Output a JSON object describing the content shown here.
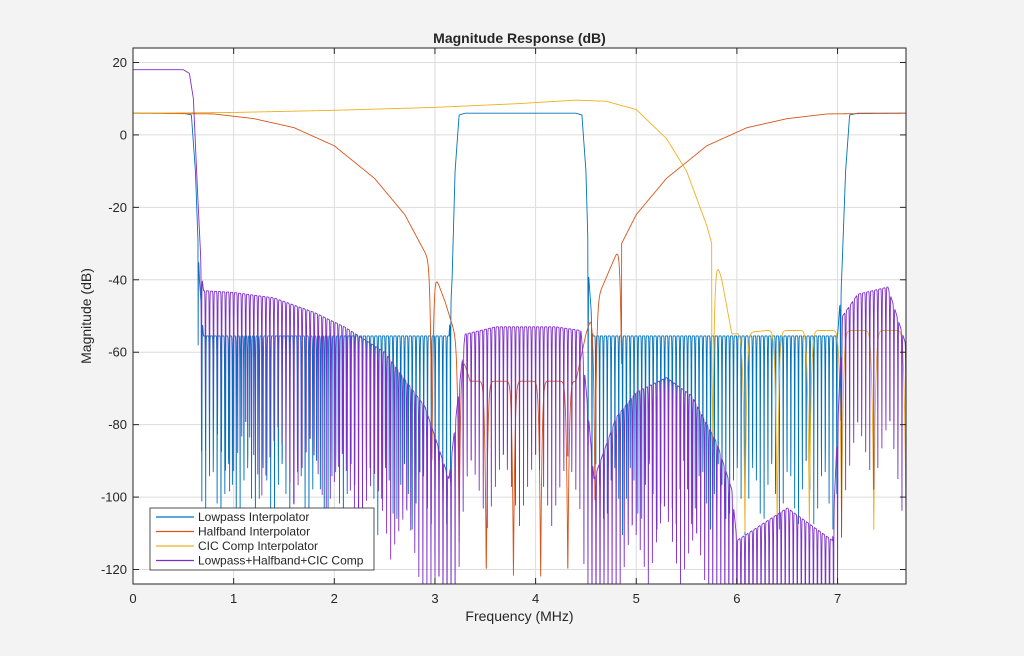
{
  "chart_data": {
    "type": "line",
    "title": "Magnitude Response (dB)",
    "xlabel": "Frequency (MHz)",
    "ylabel": "Magnitude (dB)",
    "xlim": [
      0,
      7.68
    ],
    "ylim": [
      -124,
      24
    ],
    "xticks": [
      0,
      1,
      2,
      3,
      4,
      5,
      6,
      7
    ],
    "yticks": [
      20,
      0,
      -20,
      -40,
      -60,
      -80,
      -100,
      -120
    ],
    "grid": true,
    "legend_position": "bottom-left",
    "series": [
      {
        "name": "Lowpass Interpolator",
        "color": "#0072BD",
        "envelope": [
          [
            0,
            6
          ],
          [
            0.5,
            6
          ],
          [
            0.58,
            5.5
          ],
          [
            0.62,
            -10
          ],
          [
            0.66,
            -40
          ],
          [
            0.7,
            -55.5
          ],
          [
            3.14,
            -55.5
          ],
          [
            3.17,
            -40
          ],
          [
            3.2,
            -10
          ],
          [
            3.24,
            5.5
          ],
          [
            3.3,
            6
          ],
          [
            4.4,
            6
          ],
          [
            4.46,
            5.5
          ],
          [
            4.5,
            -10
          ],
          [
            4.53,
            -40
          ],
          [
            4.57,
            -55.5
          ],
          [
            7.0,
            -55.5
          ],
          [
            7.04,
            -40
          ],
          [
            7.08,
            -10
          ],
          [
            7.12,
            5.5
          ],
          [
            7.2,
            6
          ],
          [
            7.68,
            6
          ]
        ]
      },
      {
        "name": "Halfband Interpolator",
        "color": "#D95319",
        "envelope": [
          [
            0,
            6
          ],
          [
            0.8,
            5.8
          ],
          [
            1.2,
            4.5
          ],
          [
            1.6,
            2
          ],
          [
            2.0,
            -3
          ],
          [
            2.4,
            -12
          ],
          [
            2.7,
            -22
          ],
          [
            2.95,
            -35
          ],
          [
            3.1,
            -46
          ],
          [
            3.2,
            -55
          ],
          [
            3.35,
            -68
          ],
          [
            3.6,
            -68
          ],
          [
            4.1,
            -68
          ],
          [
            4.4,
            -68
          ],
          [
            4.5,
            -55
          ],
          [
            4.6,
            -46
          ],
          [
            4.8,
            -33
          ],
          [
            5.0,
            -22
          ],
          [
            5.3,
            -12
          ],
          [
            5.7,
            -3
          ],
          [
            6.1,
            2
          ],
          [
            6.5,
            4.5
          ],
          [
            6.9,
            5.8
          ],
          [
            7.68,
            6
          ]
        ]
      },
      {
        "name": "CIC Comp Interpolator",
        "color": "#EDB120",
        "envelope": [
          [
            0,
            6
          ],
          [
            1.0,
            6.2
          ],
          [
            2.0,
            6.8
          ],
          [
            3.0,
            7.6
          ],
          [
            3.8,
            8.6
          ],
          [
            4.4,
            9.6
          ],
          [
            4.7,
            9.3
          ],
          [
            5.0,
            7
          ],
          [
            5.3,
            -1
          ],
          [
            5.5,
            -10
          ],
          [
            5.7,
            -25
          ],
          [
            5.85,
            -40
          ],
          [
            5.95,
            -55
          ],
          [
            6.3,
            -54
          ],
          [
            6.7,
            -54
          ],
          [
            7.0,
            -54
          ],
          [
            7.3,
            -54
          ],
          [
            7.68,
            -54
          ]
        ]
      },
      {
        "name": "Lowpass+Halfband+CIC Comp",
        "color": "#7E2FCA",
        "envelope": [
          [
            0,
            18
          ],
          [
            0.5,
            18
          ],
          [
            0.56,
            17
          ],
          [
            0.6,
            10
          ],
          [
            0.64,
            -15
          ],
          [
            0.68,
            -38
          ],
          [
            0.7,
            -43
          ],
          [
            1.0,
            -43.5
          ],
          [
            1.4,
            -45
          ],
          [
            1.8,
            -49
          ],
          [
            2.1,
            -53
          ],
          [
            2.5,
            -60
          ],
          [
            2.9,
            -75
          ],
          [
            3.14,
            -95
          ],
          [
            3.3,
            -55
          ],
          [
            3.6,
            -53
          ],
          [
            3.9,
            -53
          ],
          [
            4.2,
            -53
          ],
          [
            4.45,
            -54
          ],
          [
            4.58,
            -95
          ],
          [
            4.8,
            -78
          ],
          [
            5.0,
            -71
          ],
          [
            5.3,
            -67
          ],
          [
            5.55,
            -72
          ],
          [
            5.8,
            -85
          ],
          [
            5.95,
            -98
          ],
          [
            6.0,
            -112
          ],
          [
            6.5,
            -103
          ],
          [
            6.95,
            -112
          ],
          [
            7.05,
            -50
          ],
          [
            7.2,
            -44
          ],
          [
            7.5,
            -42
          ],
          [
            7.68,
            -58
          ]
        ]
      }
    ]
  }
}
